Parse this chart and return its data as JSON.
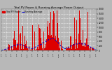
{
  "title": "Total PV Power & Running Average Power Output",
  "legend_pv": "Total PV Power",
  "legend_avg": "Running Average",
  "bar_color": "#dd0000",
  "avg_color": "#0000cc",
  "bg_color": "#b8b8b8",
  "plot_bg_color": "#b8b8b8",
  "grid_color": "#ffffff",
  "ylim": [
    0,
    1800
  ],
  "y_ticks": [
    0,
    200,
    400,
    600,
    800,
    1000,
    1200,
    1400,
    1600,
    1800
  ],
  "title_fontsize": 3.0,
  "legend_fontsize": 2.2,
  "tick_fontsize": 2.2
}
